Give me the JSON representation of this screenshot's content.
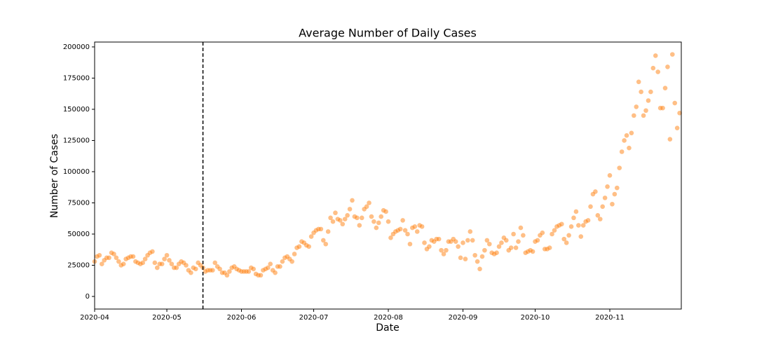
{
  "chart_data": {
    "type": "scatter",
    "title": "Average Number of Daily Cases",
    "xlabel": "Date",
    "ylabel": "Number of Cases",
    "color": "#ff7f0e",
    "opacity": 0.5,
    "vline": 45,
    "xlim": [
      0,
      243.7
    ],
    "ylim": [
      -10100,
      203900
    ],
    "xticks": [
      {
        "value": 0,
        "label": "2020-04"
      },
      {
        "value": 30,
        "label": "2020-05"
      },
      {
        "value": 61,
        "label": "2020-06"
      },
      {
        "value": 91,
        "label": "2020-07"
      },
      {
        "value": 122,
        "label": "2020-08"
      },
      {
        "value": 153,
        "label": "2020-09"
      },
      {
        "value": 183,
        "label": "2020-10"
      },
      {
        "value": 214,
        "label": "2020-11"
      }
    ],
    "yticks": [
      0,
      25000,
      50000,
      75000,
      100000,
      125000,
      150000,
      175000,
      200000
    ],
    "x": [
      0,
      1,
      2,
      3,
      4,
      5,
      6,
      7,
      8,
      9,
      10,
      11,
      12,
      13,
      14,
      15,
      16,
      17,
      18,
      19,
      20,
      21,
      22,
      23,
      24,
      25,
      26,
      27,
      28,
      29,
      30,
      31,
      32,
      33,
      34,
      35,
      36,
      37,
      38,
      39,
      40,
      41,
      42,
      43,
      44,
      45,
      46,
      47,
      48,
      49,
      50,
      51,
      52,
      53,
      54,
      55,
      56,
      57,
      58,
      59,
      60,
      61,
      62,
      63,
      64,
      65,
      66,
      67,
      68,
      69,
      70,
      71,
      72,
      73,
      74,
      75,
      76,
      77,
      78,
      79,
      80,
      81,
      82,
      83,
      84,
      85,
      86,
      87,
      88,
      89,
      90,
      91,
      92,
      93,
      94,
      95,
      96,
      97,
      98,
      99,
      100,
      101,
      102,
      103,
      104,
      105,
      106,
      107,
      108,
      109,
      110,
      111,
      112,
      113,
      114,
      115,
      116,
      117,
      118,
      119,
      120,
      121,
      122,
      123,
      124,
      125,
      126,
      127,
      128,
      129,
      130,
      131,
      132,
      133,
      134,
      135,
      136,
      137,
      138,
      139,
      140,
      141,
      142,
      143,
      144,
      145,
      146,
      147,
      148,
      149,
      150,
      151,
      152,
      153,
      154,
      155,
      156,
      157,
      158,
      159,
      160,
      161,
      162,
      163,
      164,
      165,
      166,
      167,
      168,
      169,
      170,
      171,
      172,
      173,
      174,
      175,
      176,
      177,
      178,
      179,
      180,
      181,
      182,
      183,
      184,
      185,
      186,
      187,
      188,
      189,
      190,
      191,
      192,
      193,
      194,
      195,
      196,
      197,
      198,
      199,
      200,
      201,
      202,
      203,
      204,
      205,
      206,
      207,
      208,
      209,
      210,
      211,
      212,
      213,
      214,
      215,
      216,
      217,
      218,
      219,
      220,
      221,
      222,
      223,
      224,
      225,
      226,
      227,
      228,
      229,
      230,
      231,
      232,
      233,
      234,
      235,
      236,
      237,
      238,
      239,
      240,
      241,
      242,
      243
    ],
    "values": [
      28000,
      32000,
      33000,
      26000,
      29000,
      31000,
      31000,
      35000,
      34000,
      31000,
      28000,
      25000,
      26000,
      30000,
      31000,
      32000,
      32000,
      28000,
      27000,
      26000,
      27000,
      30000,
      33000,
      35000,
      36000,
      27000,
      23000,
      26000,
      26000,
      30000,
      33000,
      29000,
      26000,
      23000,
      23000,
      26000,
      28000,
      27000,
      25000,
      21000,
      19000,
      23000,
      22000,
      27000,
      25000,
      23000,
      20000,
      21000,
      21000,
      21000,
      27000,
      24000,
      22000,
      19000,
      19000,
      17000,
      20000,
      23000,
      24000,
      22000,
      21000,
      20000,
      20000,
      20000,
      20000,
      23000,
      22000,
      18000,
      17000,
      17000,
      21000,
      22000,
      23000,
      26000,
      21000,
      19000,
      24000,
      24000,
      28000,
      31000,
      32000,
      30000,
      28000,
      34000,
      39000,
      40000,
      44000,
      43000,
      41000,
      40000,
      48000,
      51000,
      53000,
      54000,
      54000,
      45000,
      42000,
      52000,
      63000,
      60000,
      67000,
      62000,
      61000,
      58000,
      62000,
      65000,
      70000,
      77000,
      64000,
      63000,
      57000,
      63000,
      70000,
      72000,
      75000,
      64000,
      60000,
      55000,
      59000,
      64000,
      69000,
      68000,
      60000,
      47000,
      50000,
      52000,
      53000,
      54000,
      61000,
      53000,
      50000,
      42000,
      55000,
      56000,
      52000,
      57000,
      56000,
      43000,
      38000,
      40000,
      45000,
      44000,
      46000,
      46000,
      37000,
      34000,
      37000,
      44000,
      44000,
      46000,
      44000,
      40000,
      31000,
      43000,
      30000,
      45000,
      52000,
      45000,
      33000,
      28000,
      22000,
      32000,
      37000,
      45000,
      42000,
      35000,
      34000,
      35000,
      40000,
      43000,
      47000,
      45000,
      37000,
      39000,
      50000,
      39000,
      44000,
      55000,
      49000,
      35000,
      36000,
      37000,
      36000,
      44000,
      45000,
      49000,
      51000,
      38000,
      38000,
      39000,
      50000,
      53000,
      56000,
      57000,
      58000,
      46000,
      43000,
      49000,
      56000,
      63000,
      68000,
      57000,
      48000,
      57000,
      60000,
      61000,
      72000,
      82000,
      84000,
      65000,
      62000,
      72000,
      79000,
      88000,
      97000,
      74000,
      82000,
      87000,
      103000,
      116000,
      125000,
      129000,
      119000,
      131000,
      145000,
      152000,
      172000,
      164000,
      145000,
      149000,
      157000,
      164000,
      183000,
      193000,
      180000,
      151000,
      151000,
      167000,
      184000,
      126000,
      194000,
      155000,
      135000,
      147000
    ]
  }
}
